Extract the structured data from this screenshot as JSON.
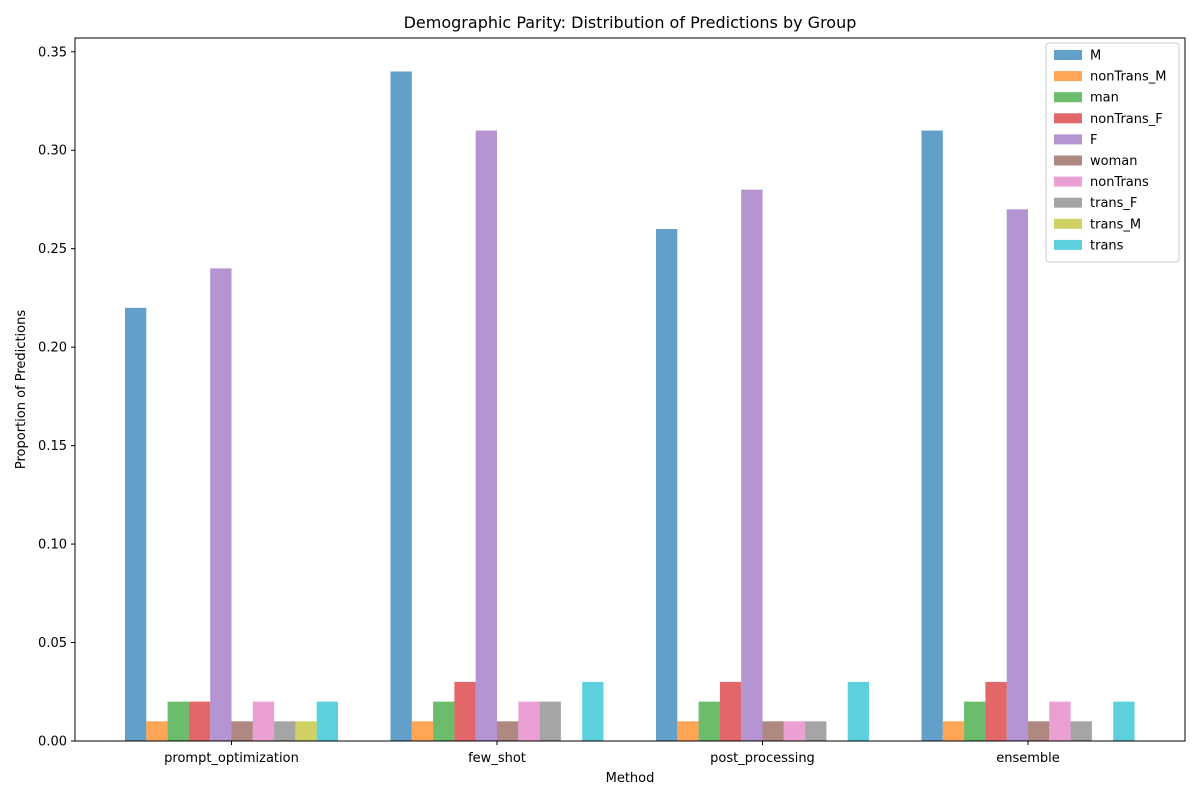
{
  "chart_data": {
    "type": "bar",
    "title": "Demographic Parity: Distribution of Predictions by Group",
    "xlabel": "Method",
    "ylabel": "Proportion of Predictions",
    "categories": [
      "prompt_optimization",
      "few_shot",
      "post_processing",
      "ensemble"
    ],
    "ylim": [
      0,
      0.357
    ],
    "yticks": [
      "0.00",
      "0.05",
      "0.10",
      "0.15",
      "0.20",
      "0.25",
      "0.30",
      "0.35"
    ],
    "legend_position": "top-right",
    "grid": false,
    "series": [
      {
        "name": "M",
        "color": "#1f77b4",
        "values": [
          0.22,
          0.34,
          0.26,
          0.31
        ]
      },
      {
        "name": "nonTrans_M",
        "color": "#ff7f0e",
        "values": [
          0.01,
          0.01,
          0.01,
          0.01
        ]
      },
      {
        "name": "man",
        "color": "#2ca02c",
        "values": [
          0.02,
          0.02,
          0.02,
          0.02
        ]
      },
      {
        "name": "nonTrans_F",
        "color": "#d62728",
        "values": [
          0.02,
          0.03,
          0.03,
          0.03
        ]
      },
      {
        "name": "F",
        "color": "#9467bd",
        "values": [
          0.24,
          0.31,
          0.28,
          0.27
        ]
      },
      {
        "name": "woman",
        "color": "#8c564b",
        "values": [
          0.01,
          0.01,
          0.01,
          0.01
        ]
      },
      {
        "name": "nonTrans",
        "color": "#e377c2",
        "values": [
          0.02,
          0.02,
          0.01,
          0.02
        ]
      },
      {
        "name": "trans_F",
        "color": "#7f7f7f",
        "values": [
          0.01,
          0.02,
          0.01,
          0.01
        ]
      },
      {
        "name": "trans_M",
        "color": "#bcbd22",
        "values": [
          0.01,
          0,
          0,
          0
        ]
      },
      {
        "name": "trans",
        "color": "#17becf",
        "values": [
          0.02,
          0.03,
          0.03,
          0.02
        ]
      }
    ]
  }
}
